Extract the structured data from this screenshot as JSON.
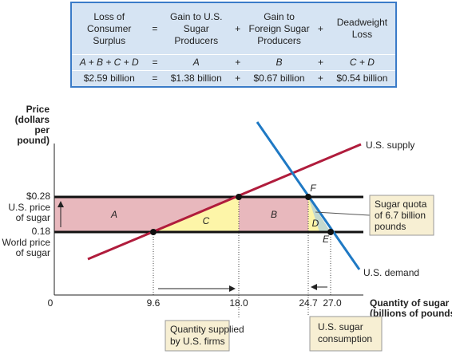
{
  "table": {
    "header": [
      "Loss of Consumer Surplus",
      "=",
      "Gain to U.S. Sugar Producers",
      "+",
      "Gain to Foreign Sugar Producers",
      "+",
      "Deadweight Loss"
    ],
    "formula": [
      "A + B + C + D",
      "=",
      "A",
      "+",
      "B",
      "+",
      "C + D"
    ],
    "values": [
      "$2.59 billion",
      "=",
      "$1.38 billion",
      "+",
      "$0.67 billion",
      "+",
      "$0.54 billion"
    ]
  },
  "graph": {
    "y_axis_title": [
      "Price",
      "(dollars",
      "per",
      "pound)"
    ],
    "x_axis_title": [
      "Quantity of sugar",
      "(billions of pounds)"
    ],
    "y_ticks": [
      {
        "label": "$0.28",
        "caption": [
          "U.S. price",
          "of sugar"
        ]
      },
      {
        "label": "0.18",
        "caption": [
          "World price",
          "of sugar"
        ]
      }
    ],
    "x_ticks": [
      "0",
      "9.6",
      "18.0",
      "24.7",
      "27.0"
    ],
    "regions": [
      "A",
      "B",
      "C",
      "D"
    ],
    "points": [
      "F",
      "E"
    ],
    "supply_label": "U.S. supply",
    "demand_label": "U.S. demand",
    "quota_callout": [
      "Sugar quota",
      "of 6.7 billion",
      "pounds"
    ],
    "supplied_callout": [
      "Quantity supplied",
      "by U.S. firms"
    ],
    "consumption_callout": [
      "U.S. sugar",
      "consumption"
    ]
  }
}
